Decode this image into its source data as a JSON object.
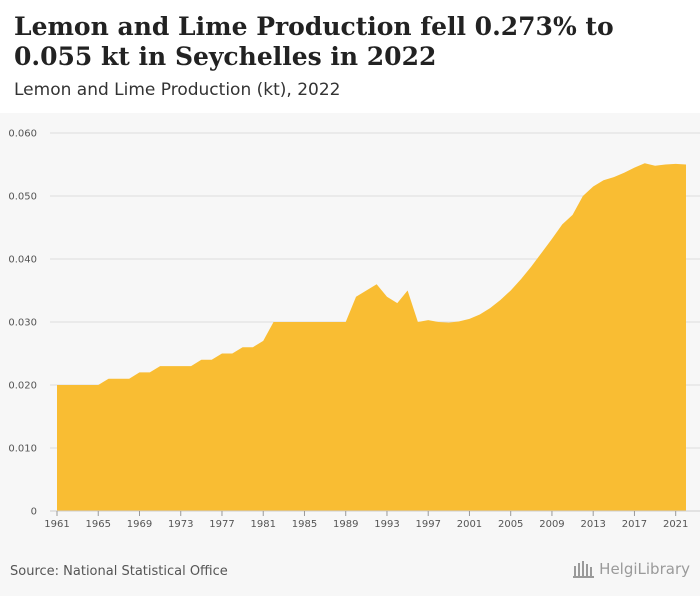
{
  "header": {
    "title": "Lemon and Lime Production fell 0.273% to 0.055 kt in Seychelles in 2022",
    "subtitle": "Lemon and Lime Production (kt), 2022"
  },
  "footer": {
    "source": "Source: National Statistical Office",
    "logo_text": "HelgiLibrary"
  },
  "colors": {
    "fill": "#f9bd33",
    "grid": "#dddddd",
    "background": "#f7f7f7"
  },
  "chart_data": {
    "type": "area",
    "title": "",
    "xlabel": "",
    "ylabel": "",
    "xlim": [
      1961,
      2022
    ],
    "ylim": [
      0,
      0.06
    ],
    "yticks": [
      "0",
      "0.010",
      "0.020",
      "0.030",
      "0.040",
      "0.050",
      "0.060"
    ],
    "xticks": [
      "1961",
      "1965",
      "1969",
      "1973",
      "1977",
      "1981",
      "1985",
      "1989",
      "1993",
      "1997",
      "2001",
      "2005",
      "2009",
      "2013",
      "2017",
      "2021"
    ],
    "grid": true,
    "legend": "none",
    "x": [
      1961,
      1962,
      1963,
      1964,
      1965,
      1966,
      1967,
      1968,
      1969,
      1970,
      1971,
      1972,
      1973,
      1974,
      1975,
      1976,
      1977,
      1978,
      1979,
      1980,
      1981,
      1982,
      1983,
      1984,
      1985,
      1986,
      1987,
      1988,
      1989,
      1990,
      1991,
      1992,
      1993,
      1994,
      1995,
      1996,
      1997,
      1998,
      1999,
      2000,
      2001,
      2002,
      2003,
      2004,
      2005,
      2006,
      2007,
      2008,
      2009,
      2010,
      2011,
      2012,
      2013,
      2014,
      2015,
      2016,
      2017,
      2018,
      2019,
      2020,
      2021,
      2022
    ],
    "values": [
      0.02,
      0.02,
      0.02,
      0.02,
      0.02,
      0.021,
      0.021,
      0.021,
      0.022,
      0.022,
      0.023,
      0.023,
      0.023,
      0.023,
      0.024,
      0.024,
      0.025,
      0.025,
      0.026,
      0.026,
      0.027,
      0.03,
      0.03,
      0.03,
      0.03,
      0.03,
      0.03,
      0.03,
      0.03,
      0.034,
      0.035,
      0.036,
      0.034,
      0.033,
      0.035,
      0.03,
      0.0303,
      0.03,
      0.0299,
      0.0301,
      0.0305,
      0.0312,
      0.0322,
      0.0335,
      0.035,
      0.0368,
      0.0388,
      0.041,
      0.0432,
      0.0455,
      0.047,
      0.05,
      0.0515,
      0.0525,
      0.053,
      0.0537,
      0.0545,
      0.0552,
      0.0548,
      0.055,
      0.0551,
      0.055
    ]
  }
}
